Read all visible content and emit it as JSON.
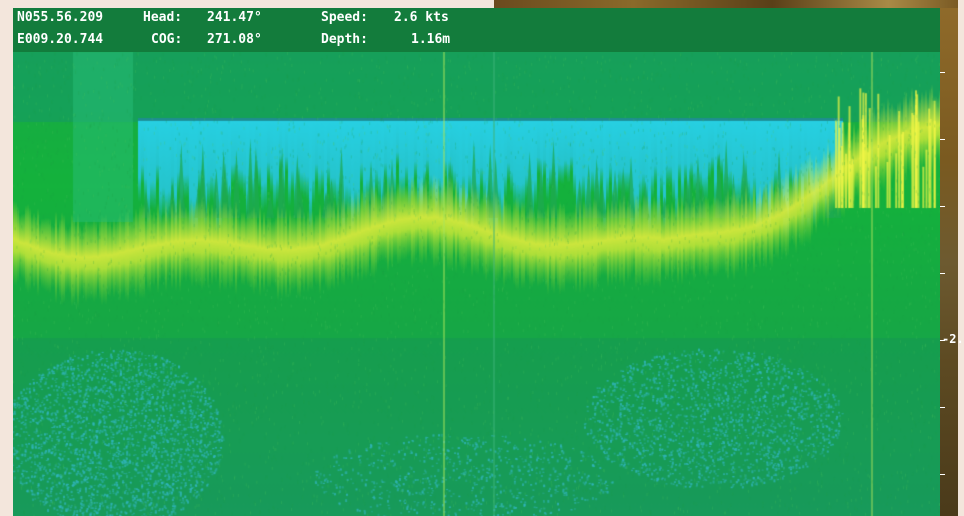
{
  "nav": {
    "latitude": "N055.56.209",
    "longitude": "E009.20.744",
    "heading_label": "Head:",
    "heading_value": "241.47°",
    "cog_label": "COG:",
    "cog_value": "271.08°",
    "speed_label": "Speed:",
    "speed_value": "2.6 kts",
    "depth_label": "Depth:",
    "depth_value": "1.16m"
  },
  "depth_scale": {
    "label": "-2.",
    "tick_count": 7
  },
  "colors": {
    "water_background": "#18a83e",
    "strong_return": "#f2f53a",
    "weak_return": "#2ec8e6",
    "header_bar": "#12783c"
  }
}
